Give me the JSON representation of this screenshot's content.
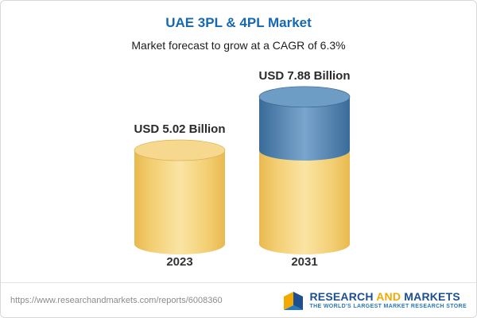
{
  "header": {
    "title": "UAE 3PL & 4PL Market",
    "subtitle": "Market forecast to grow at a CAGR of 6.3%"
  },
  "chart_data": {
    "type": "bar",
    "title": "UAE 3PL & 4PL Market",
    "subtitle": "Market forecast to grow at a CAGR of 6.3%",
    "unit": "USD Billion",
    "categories": [
      "2023",
      "2031"
    ],
    "values": [
      5.02,
      7.88
    ],
    "value_labels": [
      "USD 5.02 Billion",
      "USD 7.88 Billion"
    ],
    "cagr": "6.3%",
    "ylim": [
      0,
      8.5
    ],
    "colors": {
      "yellow": "#f5cd6d",
      "blue": "#4e80ae"
    },
    "bars": [
      {
        "category": "2023",
        "total": 5.02,
        "label": "USD 5.02 Billion",
        "segments": [
          {
            "value": 5.02,
            "color": "yellow"
          }
        ]
      },
      {
        "category": "2031",
        "total": 7.88,
        "label": "USD 7.88 Billion",
        "segments": [
          {
            "value": 5.02,
            "color": "yellow"
          },
          {
            "value": 2.86,
            "color": "blue"
          }
        ]
      }
    ]
  },
  "footer": {
    "url": "https://www.researchandmarkets.com/reports/6008360",
    "logo": {
      "word1": "RESEARCH",
      "word2": "AND",
      "word3": "MARKETS",
      "tagline": "THE WORLD'S LARGEST MARKET RESEARCH STORE"
    }
  }
}
